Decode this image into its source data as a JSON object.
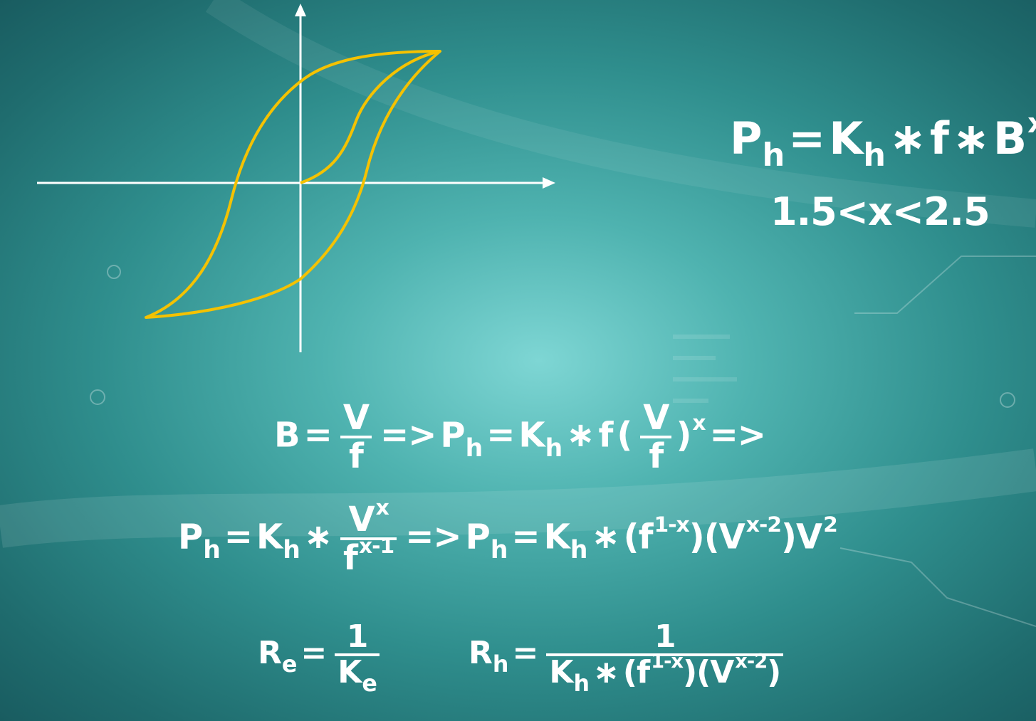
{
  "colors": {
    "background": "#3a9c9b",
    "curve": "#f5c200",
    "text": "#ffffff"
  },
  "ph_main": {
    "P": "P",
    "h": "h",
    "eq": "=",
    "K": "K",
    "kh": "h",
    "mul": "∗",
    "f": "f",
    "mul2": "∗",
    "B": "B",
    "x": "x"
  },
  "x_range": "1.5<x<2.5",
  "line1": {
    "B": "B",
    "eq": "=",
    "num": "V",
    "den": "f",
    "arrow": "=>",
    "P": "P",
    "h": "h",
    "eq2": "=",
    "K": "K",
    "kh": "h",
    "mul": "∗",
    "f": "f",
    "lp": "(",
    "num2": "V",
    "den2": "f",
    "rp": ")",
    "x": "x",
    "arrow2": "=>"
  },
  "line2": {
    "P": "P",
    "h": "h",
    "eq": "=",
    "K": "K",
    "kh": "h",
    "mul": "∗",
    "numV": "V",
    "numx": "x",
    "denf": "f",
    "denexp": "x-1",
    "arrow": "=>",
    "P2": "P",
    "h2": "h",
    "eq2": "=",
    "K2": "K",
    "kh2": "h",
    "mul2": "∗",
    "lp1": "(",
    "f": "f",
    "fexp": "1-x",
    "rp1": ")",
    "lp2": "(",
    "V": "V",
    "vexp": "x-2",
    "rp2": ")",
    "V2": "V",
    "two": "2"
  },
  "re": {
    "R": "R",
    "e": "e",
    "eq": "=",
    "num": "1",
    "den": "K",
    "dene": "e"
  },
  "rh": {
    "R": "R",
    "h": "h",
    "eq": "=",
    "num": "1",
    "K": "K",
    "kh": "h",
    "mul": "∗",
    "lp1": "(",
    "f": "f",
    "fexp": "1-x",
    "rp1": ")",
    "lp2": "(",
    "V": "V",
    "vexp": "x-2",
    "rp2": ")"
  }
}
